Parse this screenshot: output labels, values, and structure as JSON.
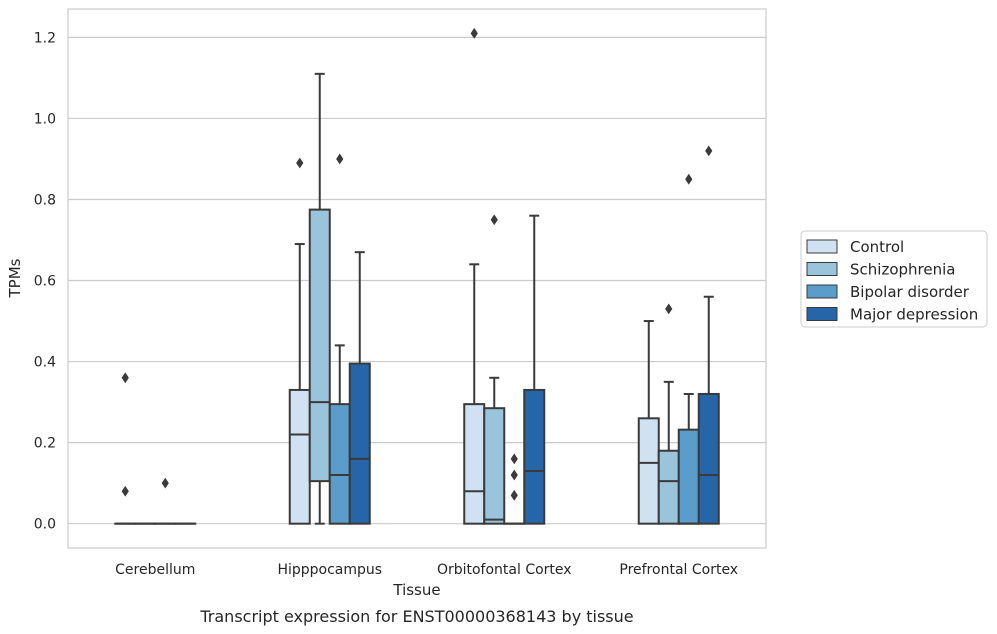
{
  "chart_data": {
    "type": "box",
    "title": "",
    "caption": "Transcript expression for ENST00000368143 by tissue",
    "xlabel": "Tissue",
    "ylabel": "TPMs",
    "ylim": [
      -0.06,
      1.27
    ],
    "yticks": [
      0.0,
      0.2,
      0.4,
      0.6,
      0.8,
      1.0,
      1.2
    ],
    "ytick_labels": [
      "0.0",
      "0.2",
      "0.4",
      "0.6",
      "0.8",
      "1.0",
      "1.2"
    ],
    "grid": "horizontal",
    "legend_position": "right",
    "categories": [
      "Cerebellum",
      "Hipppocampus",
      "Orbitofontal Cortex",
      "Prefrontal Cortex"
    ],
    "series": [
      {
        "name": "Control",
        "color": "#d0e1f2",
        "boxes": [
          {
            "whislo": 0.0,
            "q1": 0.0,
            "med": 0.0,
            "q3": 0.0,
            "whishi": 0.0,
            "fliers": [
              0.36,
              0.08
            ]
          },
          {
            "whislo": 0.0,
            "q1": 0.0,
            "med": 0.22,
            "q3": 0.33,
            "whishi": 0.69,
            "fliers": [
              0.89
            ]
          },
          {
            "whislo": 0.0,
            "q1": 0.0,
            "med": 0.08,
            "q3": 0.295,
            "whishi": 0.64,
            "fliers": [
              1.21
            ]
          },
          {
            "whislo": 0.0,
            "q1": 0.0,
            "med": 0.15,
            "q3": 0.26,
            "whishi": 0.5,
            "fliers": []
          }
        ]
      },
      {
        "name": "Schizophrenia",
        "color": "#9ac3dc",
        "boxes": [
          {
            "whislo": 0.0,
            "q1": 0.0,
            "med": 0.0,
            "q3": 0.0,
            "whishi": 0.0,
            "fliers": []
          },
          {
            "whislo": 0.0,
            "q1": 0.105,
            "med": 0.3,
            "q3": 0.775,
            "whishi": 1.11,
            "fliers": []
          },
          {
            "whislo": 0.0,
            "q1": 0.0,
            "med": 0.01,
            "q3": 0.285,
            "whishi": 0.36,
            "fliers": [
              0.75
            ]
          },
          {
            "whislo": 0.0,
            "q1": 0.0,
            "med": 0.105,
            "q3": 0.18,
            "whishi": 0.35,
            "fliers": [
              0.53
            ]
          }
        ]
      },
      {
        "name": "Bipolar disorder",
        "color": "#5a9dcb",
        "boxes": [
          {
            "whislo": 0.0,
            "q1": 0.0,
            "med": 0.0,
            "q3": 0.0,
            "whishi": 0.0,
            "fliers": [
              0.1
            ]
          },
          {
            "whislo": 0.0,
            "q1": 0.0,
            "med": 0.12,
            "q3": 0.295,
            "whishi": 0.44,
            "fliers": [
              0.9
            ]
          },
          {
            "whislo": 0.0,
            "q1": 0.0,
            "med": 0.0,
            "q3": 0.0,
            "whishi": 0.0,
            "fliers": [
              0.16,
              0.12,
              0.07
            ]
          },
          {
            "whislo": 0.0,
            "q1": 0.0,
            "med": 0.0,
            "q3": 0.232,
            "whishi": 0.32,
            "fliers": [
              0.85
            ]
          }
        ]
      },
      {
        "name": "Major depression",
        "color": "#2666a8",
        "boxes": [
          {
            "whislo": 0.0,
            "q1": 0.0,
            "med": 0.0,
            "q3": 0.0,
            "whishi": 0.0,
            "fliers": []
          },
          {
            "whislo": 0.0,
            "q1": 0.0,
            "med": 0.16,
            "q3": 0.395,
            "whishi": 0.67,
            "fliers": []
          },
          {
            "whislo": 0.0,
            "q1": 0.0,
            "med": 0.13,
            "q3": 0.33,
            "whishi": 0.76,
            "fliers": []
          },
          {
            "whislo": 0.0,
            "q1": 0.0,
            "med": 0.12,
            "q3": 0.32,
            "whishi": 0.56,
            "fliers": [
              0.92
            ]
          }
        ]
      }
    ]
  }
}
